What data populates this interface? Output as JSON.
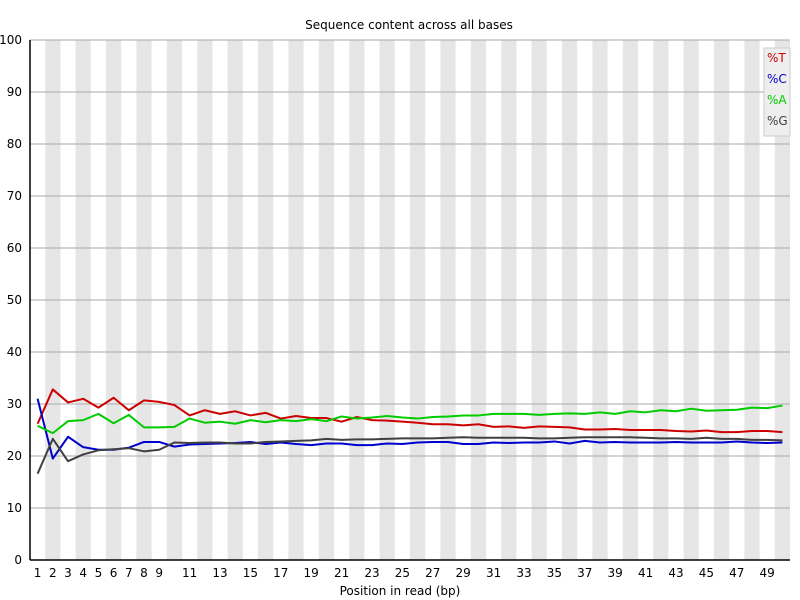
{
  "chart_data": {
    "type": "line",
    "title": "Sequence content across all bases",
    "xlabel": "Position in read (bp)",
    "ylabel": "",
    "ylim": [
      0,
      100
    ],
    "y_ticks": [
      "0",
      "10",
      "20",
      "30",
      "40",
      "50",
      "60",
      "70",
      "80",
      "90",
      "100"
    ],
    "x_categories": [
      "1",
      "2",
      "3",
      "4",
      "5",
      "6",
      "7",
      "8",
      "9",
      "10",
      "11",
      "12",
      "13",
      "14",
      "15",
      "16",
      "17",
      "18",
      "19",
      "20",
      "21",
      "22",
      "23",
      "24",
      "25",
      "26",
      "27",
      "28",
      "29",
      "30",
      "31",
      "32",
      "33",
      "34",
      "35",
      "36",
      "37",
      "38",
      "39",
      "40",
      "41",
      "42",
      "43",
      "44",
      "45",
      "46",
      "47",
      "48",
      "49",
      "50"
    ],
    "x_tick_labels": [
      "1",
      "2",
      "3",
      "4",
      "5",
      "6",
      "7",
      "8",
      "9",
      "11",
      "13",
      "15",
      "17",
      "19",
      "21",
      "23",
      "25",
      "27",
      "29",
      "31",
      "33",
      "35",
      "37",
      "39",
      "41",
      "43",
      "45",
      "47",
      "49"
    ],
    "background": "alternating light-grey vertical bands",
    "grid": true,
    "legend_position": "top-right",
    "series": [
      {
        "name": "%T",
        "color": "#cc0000",
        "values": [
          26.2,
          32.8,
          30.3,
          31.0,
          29.3,
          31.2,
          28.8,
          30.7,
          30.4,
          29.8,
          27.8,
          28.8,
          28.1,
          28.6,
          27.8,
          28.3,
          27.2,
          27.7,
          27.3,
          27.3,
          26.6,
          27.5,
          26.9,
          26.8,
          26.6,
          26.4,
          26.1,
          26.1,
          25.9,
          26.1,
          25.6,
          25.7,
          25.4,
          25.7,
          25.6,
          25.5,
          25.1,
          25.1,
          25.2,
          25.0,
          25.0,
          25.0,
          24.8,
          24.7,
          24.9,
          24.6,
          24.6,
          24.8,
          24.8,
          24.6
        ]
      },
      {
        "name": "%C",
        "color": "#0000cc",
        "values": [
          31.0,
          19.5,
          23.7,
          21.7,
          21.2,
          21.2,
          21.6,
          22.7,
          22.7,
          21.8,
          22.2,
          22.3,
          22.4,
          22.5,
          22.7,
          22.3,
          22.6,
          22.3,
          22.1,
          22.4,
          22.4,
          22.1,
          22.1,
          22.4,
          22.3,
          22.6,
          22.7,
          22.7,
          22.3,
          22.3,
          22.6,
          22.5,
          22.6,
          22.6,
          22.8,
          22.4,
          22.9,
          22.6,
          22.7,
          22.6,
          22.6,
          22.6,
          22.7,
          22.6,
          22.6,
          22.6,
          22.8,
          22.6,
          22.5,
          22.6
        ]
      },
      {
        "name": "%A",
        "color": "#00cc00",
        "values": [
          25.8,
          24.4,
          26.7,
          26.9,
          28.1,
          26.3,
          27.9,
          25.5,
          25.5,
          25.6,
          27.2,
          26.4,
          26.6,
          26.2,
          26.9,
          26.5,
          26.9,
          26.7,
          27.1,
          26.7,
          27.6,
          27.2,
          27.4,
          27.7,
          27.4,
          27.2,
          27.5,
          27.6,
          27.8,
          27.8,
          28.1,
          28.1,
          28.1,
          27.9,
          28.1,
          28.2,
          28.1,
          28.4,
          28.1,
          28.6,
          28.4,
          28.8,
          28.6,
          29.1,
          28.7,
          28.8,
          28.9,
          29.3,
          29.2,
          29.7
        ]
      },
      {
        "name": "%G",
        "color": "#404040",
        "values": [
          16.6,
          23.3,
          19.0,
          20.3,
          21.1,
          21.3,
          21.5,
          20.9,
          21.2,
          22.6,
          22.5,
          22.6,
          22.6,
          22.4,
          22.4,
          22.7,
          22.8,
          22.9,
          23.0,
          23.3,
          23.1,
          23.2,
          23.2,
          23.3,
          23.4,
          23.4,
          23.4,
          23.5,
          23.6,
          23.5,
          23.5,
          23.5,
          23.5,
          23.4,
          23.4,
          23.5,
          23.6,
          23.6,
          23.6,
          23.6,
          23.5,
          23.4,
          23.4,
          23.3,
          23.5,
          23.3,
          23.3,
          23.1,
          23.1,
          23.0
        ]
      }
    ]
  }
}
